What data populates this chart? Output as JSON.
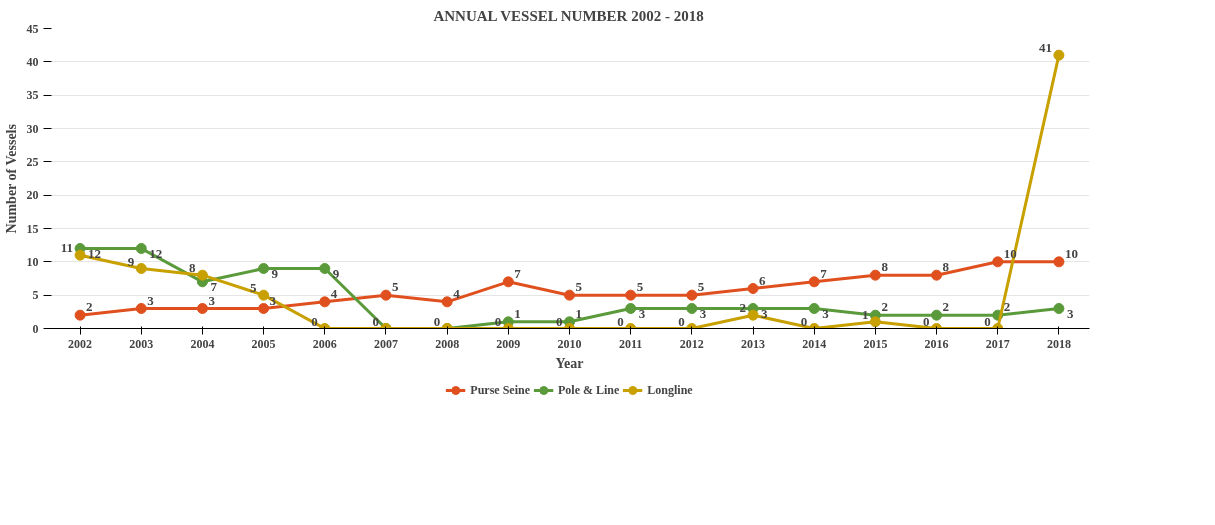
{
  "chart_data": {
    "type": "line",
    "title": "ANNUAL VESSEL NUMBER 2002 - 2018",
    "xlabel": "Year",
    "ylabel": "Number of Vessels",
    "categories": [
      "2002",
      "2003",
      "2004",
      "2005",
      "2006",
      "2007",
      "2008",
      "2009",
      "2010",
      "2011",
      "2012",
      "2013",
      "2014",
      "2015",
      "2016",
      "2017",
      "2018"
    ],
    "series": [
      {
        "name": "Purse Seine",
        "color": "#e0501e",
        "values": [
          2,
          3,
          3,
          3,
          4,
          5,
          4,
          7,
          5,
          5,
          5,
          6,
          7,
          8,
          8,
          10,
          10
        ],
        "value_labels": [
          "2",
          "3",
          "3",
          "3",
          "4",
          "5",
          "4",
          "7",
          "5",
          "5",
          "5",
          "6",
          "7",
          "8",
          "8",
          "10",
          "10"
        ]
      },
      {
        "name": "Pole & Line",
        "color": "#5a9a3a",
        "values": [
          12,
          12,
          7,
          9,
          9,
          0,
          0,
          1,
          1,
          3,
          3,
          3,
          3,
          2,
          2,
          2,
          3
        ],
        "value_labels": [
          "12",
          "12",
          "7",
          "9",
          "9",
          null,
          null,
          "1",
          "1",
          "3",
          "3",
          "3",
          "3",
          "2",
          "2",
          "2",
          "3"
        ]
      },
      {
        "name": "Longline",
        "color": "#c8a000",
        "values": [
          11,
          9,
          8,
          5,
          0,
          0,
          0,
          0,
          0,
          0,
          0,
          2,
          0,
          1,
          0,
          0,
          41
        ],
        "value_labels": [
          "11",
          "9",
          "8",
          "5",
          "0",
          "0",
          "0",
          "0",
          "0",
          "0",
          "0",
          "2",
          "0",
          "1",
          "0",
          "0",
          "41"
        ]
      }
    ],
    "ylim": [
      0,
      45
    ],
    "yticks": [
      0,
      5,
      10,
      15,
      20,
      25,
      30,
      35,
      40,
      45
    ],
    "grid": "y",
    "legend": "bottom",
    "marker": "circle",
    "data_labels": true
  }
}
